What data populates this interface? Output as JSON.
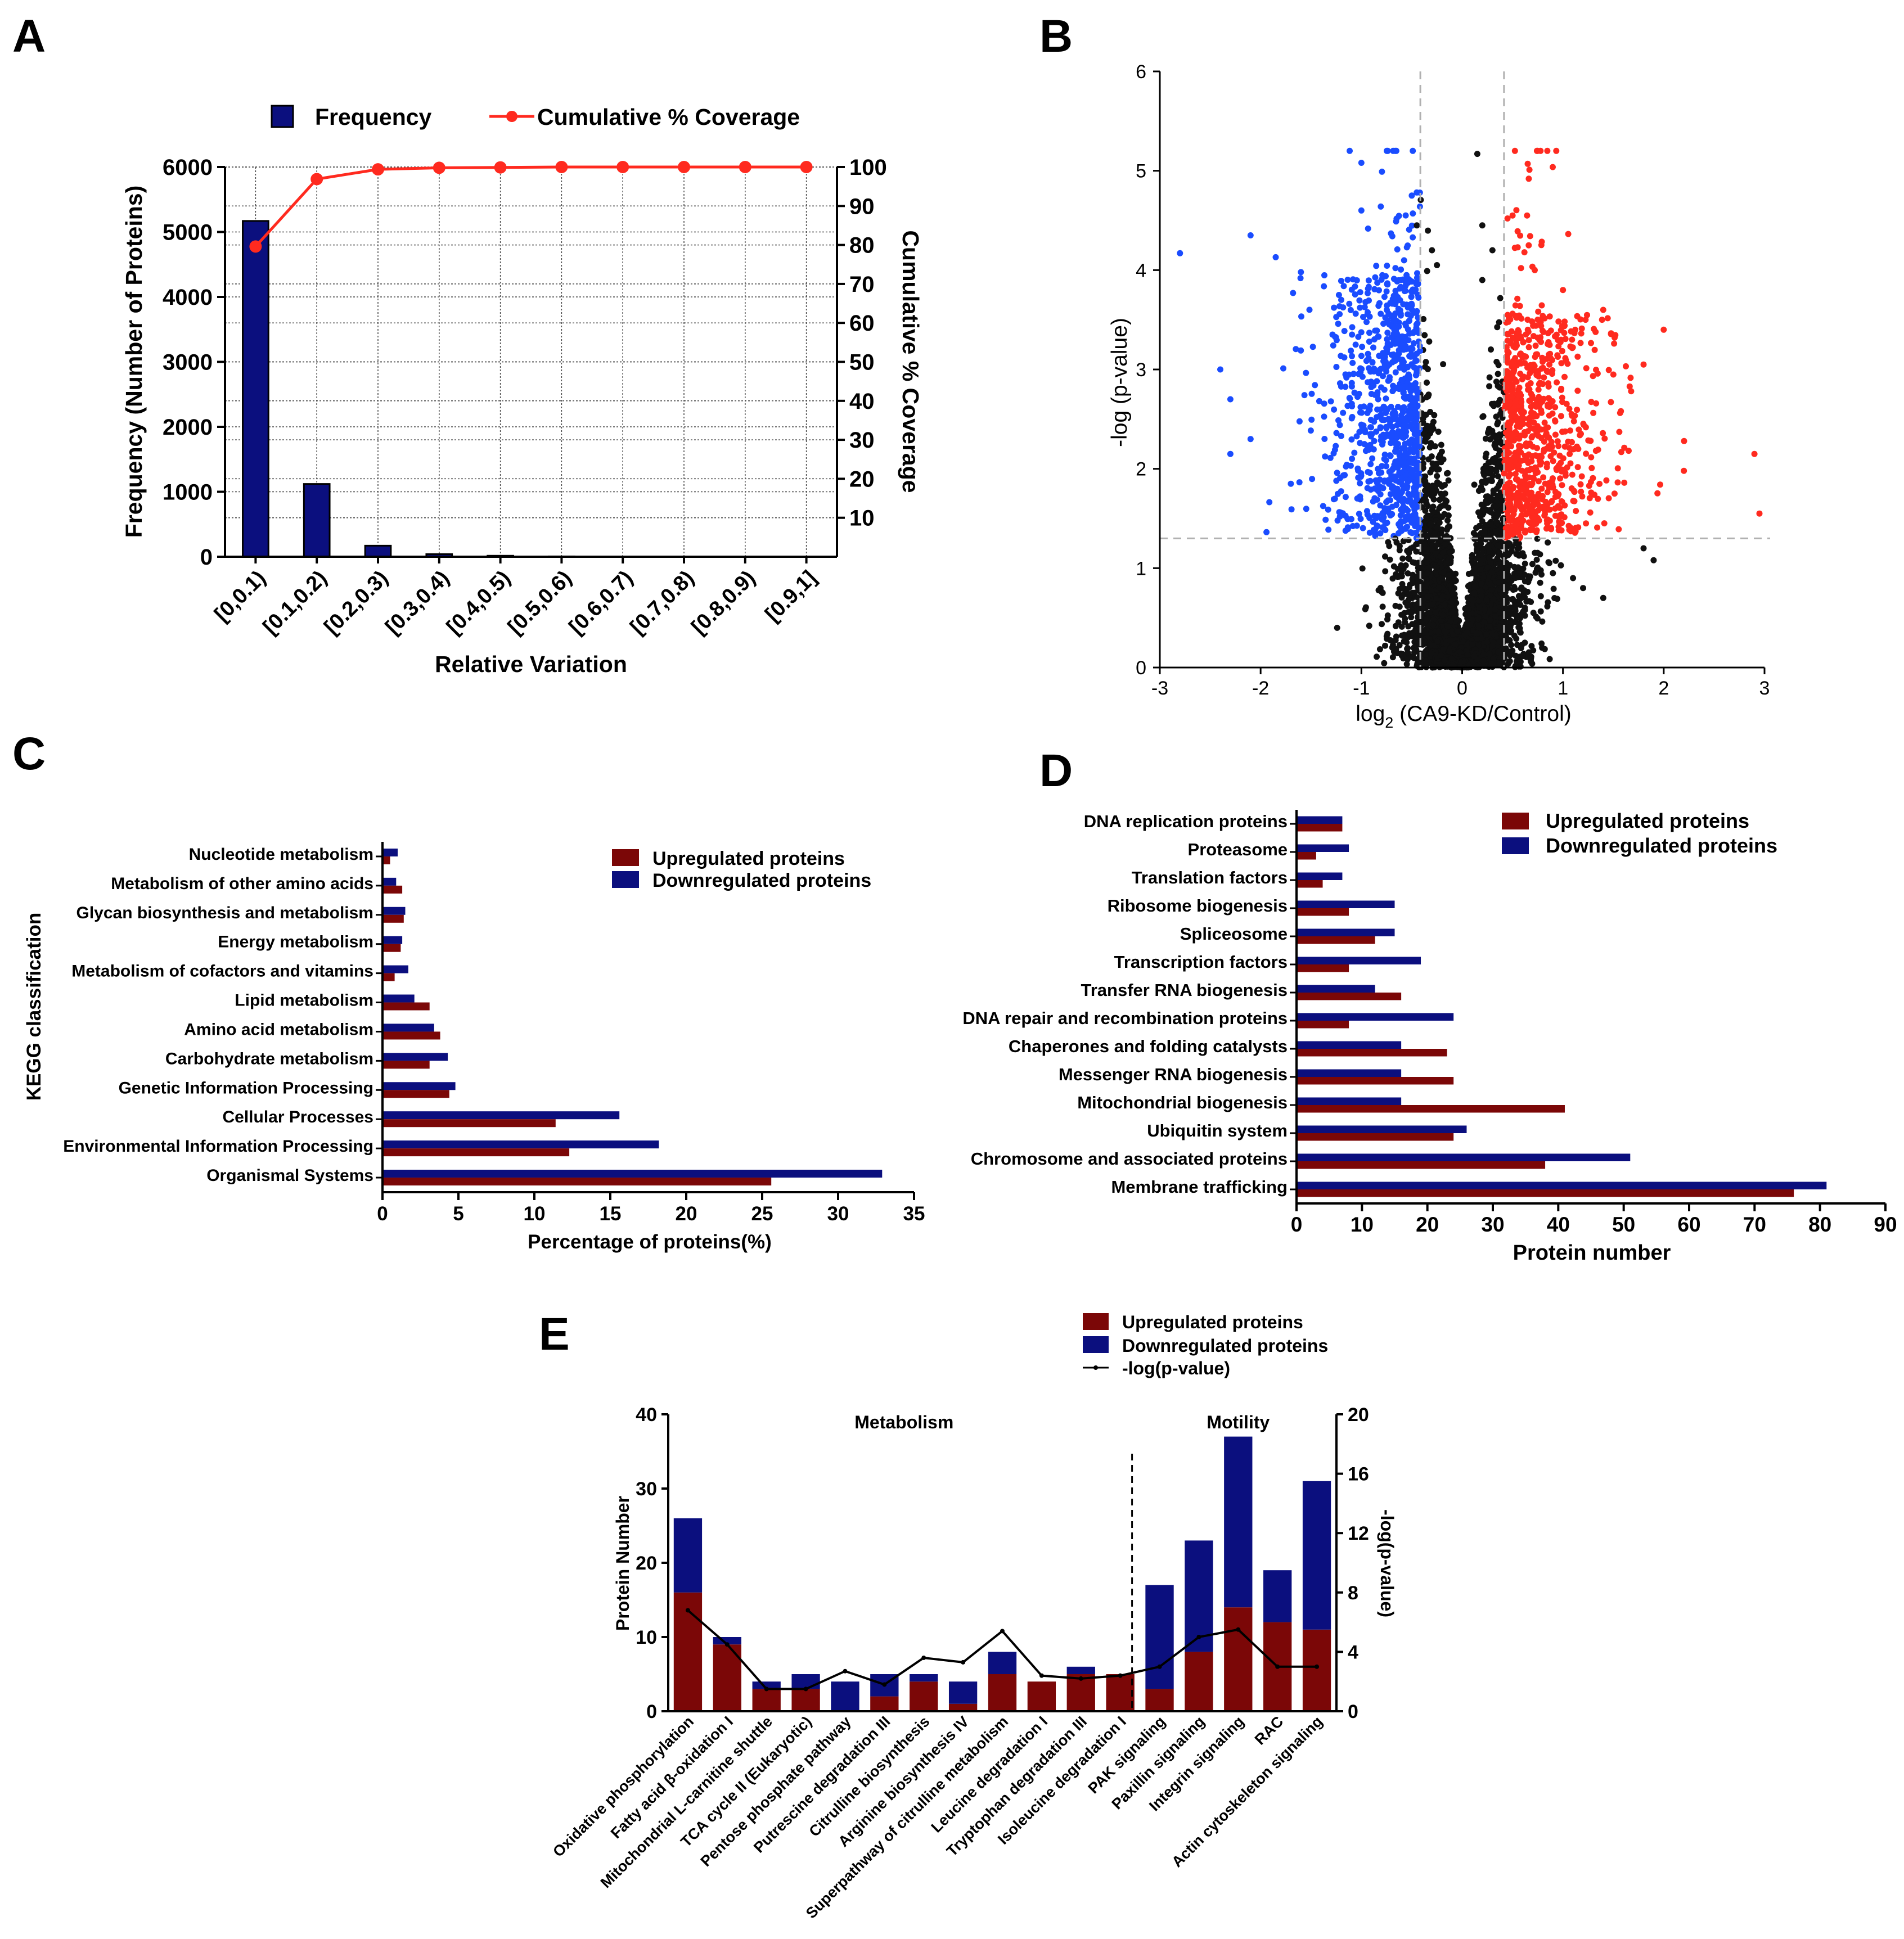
{
  "figure": {
    "panel_labels": [
      "A",
      "B",
      "C",
      "D",
      "E"
    ]
  },
  "colors": {
    "navy": "#0b0f7e",
    "dark_red": "#7b0707",
    "red": "#ff2a1f",
    "blue": "#1a4cff",
    "black": "#111111",
    "grey_dash": "#b0b0b0"
  },
  "chart_data": [
    {
      "panel": "A",
      "type": "bar",
      "categories": [
        "[0,0.1)",
        "[0.1,0.2)",
        "[0.2,0.3)",
        "[0.3,0.4)",
        "[0.4,0.5)",
        "[0.5,0.6)",
        "[0.6,0.7)",
        "[0.7,0.8)",
        "[0.8,0.9)",
        "[0.9,1]"
      ],
      "series": [
        {
          "name": "Frequency",
          "type": "bar",
          "values": [
            5170,
            1120,
            170,
            40,
            15,
            5,
            3,
            2,
            1,
            1
          ]
        },
        {
          "name": "Cumulative % Coverage",
          "type": "line",
          "values": [
            79.6,
            96.9,
            99.4,
            99.8,
            99.9,
            100,
            100,
            100,
            100,
            100
          ]
        }
      ],
      "xlabel": "Relative Variation",
      "ylabel": "Frequency (Number of Proteins)",
      "y2label": "Cumulative % Coverage",
      "ylim": [
        0,
        6000
      ],
      "yticks": [
        0,
        1000,
        2000,
        3000,
        4000,
        5000,
        6000
      ],
      "y2lim": [
        0,
        100
      ],
      "y2ticks": [
        10,
        20,
        30,
        40,
        50,
        60,
        70,
        80,
        90,
        100
      ],
      "grid": true,
      "legend": "top"
    },
    {
      "panel": "B",
      "type": "scatter",
      "title": "",
      "xlabel_main": "log",
      "xlabel_sub": "2",
      "xlabel_rest": " (CA9-KD/Control)",
      "ylabel": "-log (p-value)",
      "xlim": [
        -3,
        3
      ],
      "ylim": [
        0,
        6
      ],
      "xticks": [
        -3,
        -2,
        -1,
        0,
        1,
        2,
        3
      ],
      "yticks": [
        0,
        1,
        2,
        3,
        4,
        5,
        6
      ],
      "fold_change_thresholds": [
        -0.415,
        0.415
      ],
      "pvalue_threshold": 1.3,
      "groups": [
        "downregulated",
        "unchanged",
        "upregulated"
      ],
      "highlight_points": {
        "downregulated": [
          [
            -2.8,
            4.17
          ],
          [
            -2.1,
            4.35
          ],
          [
            -1.85,
            4.13
          ],
          [
            -1.6,
            3.98
          ],
          [
            -2.4,
            3.0
          ],
          [
            -2.3,
            2.7
          ],
          [
            -2.3,
            2.15
          ],
          [
            -2.1,
            2.3
          ],
          [
            -1.7,
            1.85
          ],
          [
            -1.0,
            5.08
          ],
          [
            -0.5,
            4.75
          ],
          [
            -0.42,
            4.78
          ],
          [
            -1.0,
            4.6
          ],
          [
            -1.2,
            3.7
          ]
        ],
        "upregulated": [
          [
            0.65,
            5.07
          ],
          [
            0.5,
            4.55
          ],
          [
            0.45,
            4.52
          ],
          [
            0.66,
            4.25
          ],
          [
            0.72,
            4.0
          ],
          [
            1.0,
            3.8
          ],
          [
            2.0,
            3.4
          ],
          [
            1.4,
            3.6
          ],
          [
            2.9,
            2.15
          ],
          [
            2.95,
            1.55
          ],
          [
            2.2,
            1.98
          ],
          [
            1.8,
            3.05
          ]
        ],
        "unchanged": [
          [
            0.15,
            5.17
          ],
          [
            0.2,
            4.45
          ],
          [
            -0.45,
            4.45
          ],
          [
            -0.3,
            4.2
          ],
          [
            0.3,
            4.2
          ],
          [
            0.2,
            3.9
          ],
          [
            -0.25,
            4.05
          ],
          [
            1.8,
            1.2
          ],
          [
            1.9,
            1.08
          ],
          [
            1.4,
            0.7
          ],
          [
            1.2,
            0.8
          ],
          [
            0.9,
            0.95
          ],
          [
            1.1,
            0.9
          ],
          [
            0.6,
            1.15
          ]
        ]
      }
    },
    {
      "panel": "C",
      "type": "bar",
      "orientation": "horizontal",
      "categories": [
        "Nucleotide metabolism",
        "Metabolism of other amino acids",
        "Glycan biosynthesis and metabolism",
        "Energy metabolism",
        "Metabolism of cofactors and vitamins",
        "Lipid metabolism",
        "Amino acid metabolism",
        "Carbohydrate metabolism",
        "Genetic Information Processing",
        "Cellular Processes",
        "Environmental Information Processing",
        "Organismal Systems"
      ],
      "series": [
        {
          "name": "Upregulated proteins",
          "values": [
            0.5,
            1.3,
            1.4,
            1.2,
            0.8,
            3.1,
            3.8,
            3.1,
            4.4,
            11.4,
            12.3,
            25.6
          ]
        },
        {
          "name": "Downregulated proteins",
          "values": [
            1.0,
            0.9,
            1.5,
            1.3,
            1.7,
            2.1,
            3.4,
            4.3,
            4.8,
            15.6,
            18.2,
            32.9
          ]
        }
      ],
      "xlabel": "Percentage of proteins(%)",
      "ylabel": "KEGG classification",
      "xlim": [
        0,
        35
      ],
      "xticks": [
        0,
        5,
        10,
        15,
        20,
        25,
        30,
        35
      ],
      "legend": "top-right"
    },
    {
      "panel": "D",
      "type": "bar",
      "orientation": "horizontal",
      "categories": [
        "DNA replication proteins",
        "Proteasome",
        "Translation factors",
        "Ribosome biogenesis",
        "Spliceosome",
        "Transcription factors",
        "Transfer RNA biogenesis",
        "DNA repair and recombination proteins",
        "Chaperones and folding catalysts",
        "Messenger RNA biogenesis",
        "Mitochondrial biogenesis",
        "Ubiquitin system",
        "Chromosome and associated proteins",
        "Membrane trafficking"
      ],
      "series": [
        {
          "name": "Upregulated proteins",
          "values": [
            7,
            3,
            4,
            8,
            12,
            8,
            16,
            8,
            23,
            24,
            41,
            24,
            38,
            76
          ]
        },
        {
          "name": "Downregulated proteins",
          "values": [
            7,
            8,
            7,
            15,
            15,
            19,
            12,
            24,
            16,
            16,
            16,
            26,
            51,
            81
          ]
        }
      ],
      "xlabel": "Protein number",
      "xlim": [
        0,
        90
      ],
      "xticks": [
        0,
        10,
        20,
        30,
        40,
        50,
        60,
        70,
        80,
        90
      ],
      "legend": "top-right"
    },
    {
      "panel": "E",
      "type": "bar",
      "stacked": true,
      "categories": [
        "Oxidative phosphorylation",
        "Fatty acid β-oxidation I",
        "Mitochondrial L-carnitine shuttle",
        "TCA cycle II (Eukaryotic)",
        "Pentose phosphate pathway",
        "Putrescine degradation III",
        "Citrulline biosynthesis",
        "Arginine biosynthesis IV",
        "Superpathway of citrulline metabolism",
        "Leucine degradation I",
        "Tryptophan degradation III",
        "Isoleucine degradation I",
        "PAK signaling",
        "Paxillin signaling",
        "Integrin signaling",
        "RAC",
        "Actin cytoskeleton signaling"
      ],
      "groups": [
        {
          "label": "Metabolism",
          "from": 0,
          "to": 11
        },
        {
          "label": "Motility",
          "from": 12,
          "to": 16
        }
      ],
      "series": [
        {
          "name": "Upregulated proteins",
          "type": "bar",
          "values": [
            16,
            9,
            3,
            3,
            0,
            2,
            4,
            1,
            5,
            4,
            5,
            5,
            3,
            8,
            14,
            12,
            11
          ]
        },
        {
          "name": "Downregulated proteins",
          "type": "bar",
          "values": [
            10,
            1,
            1,
            2,
            4,
            3,
            1,
            3,
            3,
            0,
            1,
            0,
            14,
            15,
            23,
            7,
            20
          ]
        },
        {
          "name": "-log(p-value)",
          "type": "line",
          "axis": "right",
          "values": [
            6.8,
            4.5,
            1.5,
            1.5,
            2.7,
            1.8,
            3.6,
            3.3,
            5.4,
            2.4,
            2.2,
            2.4,
            3.0,
            5.0,
            5.5,
            3.0,
            3.0
          ]
        }
      ],
      "ylabel": "Protein Number",
      "y2label": "-log(p-value)",
      "ylim": [
        0,
        40
      ],
      "yticks": [
        0,
        10,
        20,
        30,
        40
      ],
      "y2lim": [
        0,
        20
      ],
      "y2ticks": [
        0,
        4,
        8,
        12,
        16,
        20
      ],
      "legend": "top"
    }
  ]
}
